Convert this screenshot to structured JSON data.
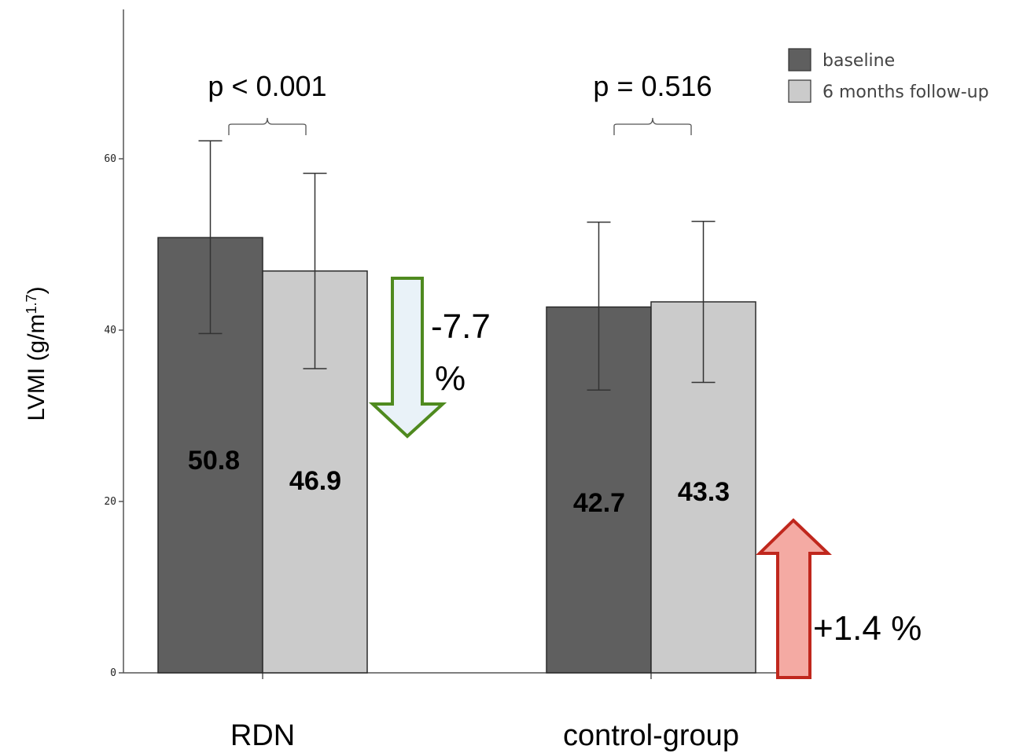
{
  "chart_data": {
    "type": "bar",
    "categories": [
      "RDN",
      "control-group"
    ],
    "series": [
      {
        "name": "baseline",
        "values": [
          50.8,
          42.7
        ],
        "error_low": [
          39.6,
          33.0
        ],
        "error_high": [
          62.1,
          52.6
        ],
        "color": "#5f5f5f"
      },
      {
        "name": "6 months follow-up",
        "values": [
          46.9,
          43.3
        ],
        "error_low": [
          35.5,
          33.9
        ],
        "error_high": [
          58.3,
          52.7
        ],
        "color": "#cbcbcb"
      }
    ],
    "value_labels": [
      [
        "50.8",
        "42.7"
      ],
      [
        "46.9",
        "43.3"
      ]
    ],
    "ylabel": "LVMI (g/m",
    "ylabel_sup": "1.7",
    "ylabel_close": ")",
    "ylim": [
      0,
      70
    ],
    "yticks": [
      0,
      20,
      40,
      60
    ],
    "ytick_labels": [
      "0",
      "20",
      "40",
      "60"
    ],
    "legend_position": "top-right",
    "p_values": [
      "p < 0.001",
      "p = 0.516"
    ],
    "changes": [
      {
        "line1": "-7.7",
        "line2": "%",
        "direction": "down",
        "fill": "#e9f2f8",
        "stroke": "#4f8a1f"
      },
      {
        "line1": "+1.4 %",
        "direction": "up",
        "fill": "#f4aaa3",
        "stroke": "#c0271d"
      }
    ],
    "grid": false
  }
}
